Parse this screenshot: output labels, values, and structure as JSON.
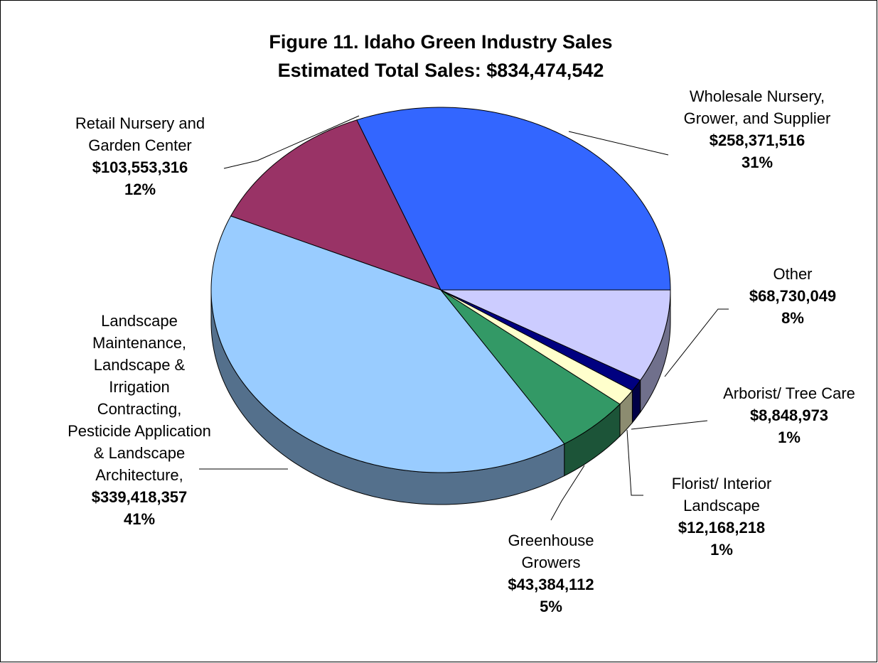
{
  "chart_data": {
    "type": "pie3d",
    "title": "Figure 11.  Idaho Green Industry Sales",
    "subtitle": "Estimated Total Sales:  $834,474,542",
    "categories": [
      "Wholesale Nursery, Grower, and Supplier",
      "Retail Nursery and Garden Center",
      "Landscape Maintenance, Landscape & Irrigation Contracting, Pesticide Application & Landscape Architecture,",
      "Greenhouse Growers",
      "Florist/ Interior Landscape",
      "Arborist/ Tree Care",
      "Other"
    ],
    "values": [
      258371516,
      103553316,
      339418357,
      43384112,
      12168218,
      8848973,
      68730049
    ],
    "value_labels": [
      "$258,371,516",
      "$103,553,316",
      "$339,418,357",
      "$43,384,112",
      "$12,168,218",
      "$8,848,973",
      "$68,730,049"
    ],
    "percents": [
      31,
      12,
      41,
      5,
      1,
      1,
      8
    ],
    "percent_labels": [
      "31%",
      "12%",
      "41%",
      "5%",
      "1%",
      "1%",
      "8%"
    ],
    "colors": [
      "#3366ff",
      "#993366",
      "#99ccff",
      "#339966",
      "#ffffcc",
      "#000080",
      "#ccccff"
    ]
  }
}
